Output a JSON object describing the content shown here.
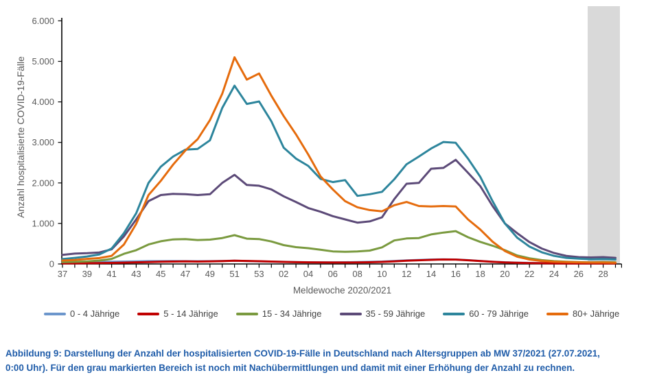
{
  "figure": {
    "caption_line1": "Abbildung 9: Darstellung der Anzahl der hospitalisierten COVID-19-Fälle in Deutschland nach Altersgruppen ab MW 37/2021 (27.07.2021,",
    "caption_line2": "0:00 Uhr). Für den grau markierten Bereich ist noch mit Nachübermittlungen und damit mit einer Erhöhung der Anzahl zu rechnen."
  },
  "chart_data": {
    "type": "line",
    "xlabel": "Meldewoche 2020/2021",
    "ylabel": "Anzahl hospitalisierte COVID-19-Fälle",
    "ylim": [
      0,
      6000
    ],
    "grid": false,
    "legend_position": "bottom",
    "y_ticks": [
      {
        "value": 0,
        "label": "0"
      },
      {
        "value": 1000,
        "label": "1.000"
      },
      {
        "value": 2000,
        "label": "2.000"
      },
      {
        "value": 3000,
        "label": "3.000"
      },
      {
        "value": 4000,
        "label": "4.000"
      },
      {
        "value": 5000,
        "label": "5.000"
      },
      {
        "value": 6000,
        "label": "6.000"
      }
    ],
    "x_label_every": 2,
    "categories": [
      "37",
      "38",
      "39",
      "40",
      "41",
      "42",
      "43",
      "44",
      "45",
      "46",
      "47",
      "48",
      "49",
      "50",
      "51",
      "52",
      "53",
      "01",
      "02",
      "03",
      "04",
      "05",
      "06",
      "07",
      "08",
      "09",
      "10",
      "11",
      "12",
      "13",
      "14",
      "15",
      "16",
      "17",
      "18",
      "19",
      "20",
      "21",
      "22",
      "23",
      "24",
      "25",
      "26",
      "27",
      "28",
      "29"
    ],
    "highlight_band": {
      "description": "grau markierter Bereich: Nachübermittlungen erwartet",
      "from_week": "27",
      "to_week": "29",
      "color": "#d9d9d9"
    },
    "series": [
      {
        "name": "0 - 4 Jährige",
        "color": "#6c96cc",
        "values": [
          40,
          42,
          45,
          50,
          55,
          60,
          65,
          70,
          70,
          72,
          70,
          68,
          70,
          75,
          80,
          72,
          65,
          58,
          52,
          46,
          42,
          40,
          40,
          42,
          46,
          52,
          60,
          75,
          90,
          100,
          110,
          115,
          110,
          95,
          75,
          55,
          42,
          32,
          26,
          22,
          20,
          18,
          18,
          20,
          24,
          22
        ]
      },
      {
        "name": "5 - 14 Jährige",
        "color": "#c00000",
        "values": [
          15,
          16,
          18,
          20,
          25,
          32,
          40,
          46,
          55,
          60,
          62,
          60,
          65,
          70,
          80,
          74,
          68,
          60,
          50,
          44,
          40,
          38,
          35,
          35,
          38,
          42,
          50,
          65,
          80,
          92,
          102,
          110,
          108,
          92,
          72,
          52,
          38,
          28,
          22,
          18,
          15,
          13,
          12,
          12,
          14,
          12
        ]
      },
      {
        "name": "15 - 34 Jährige",
        "color": "#7a9a3f",
        "values": [
          45,
          52,
          62,
          85,
          125,
          250,
          340,
          480,
          560,
          605,
          615,
          590,
          600,
          640,
          710,
          625,
          615,
          555,
          465,
          415,
          390,
          350,
          310,
          300,
          310,
          330,
          410,
          580,
          630,
          640,
          730,
          775,
          810,
          660,
          545,
          450,
          340,
          210,
          140,
          95,
          70,
          55,
          45,
          40,
          45,
          40
        ]
      },
      {
        "name": "35 - 59 Jährige",
        "color": "#5c4a78",
        "values": [
          225,
          255,
          265,
          285,
          360,
          680,
          1100,
          1550,
          1700,
          1730,
          1720,
          1700,
          1720,
          2000,
          2200,
          1950,
          1930,
          1840,
          1670,
          1530,
          1380,
          1290,
          1180,
          1100,
          1020,
          1050,
          1150,
          1600,
          1980,
          2000,
          2350,
          2370,
          2570,
          2250,
          1920,
          1430,
          1000,
          760,
          540,
          380,
          270,
          200,
          170,
          160,
          170,
          150
        ]
      },
      {
        "name": "60 - 79 Jährige",
        "color": "#2d859c",
        "values": [
          120,
          150,
          185,
          235,
          380,
          760,
          1250,
          2000,
          2400,
          2650,
          2820,
          2840,
          3050,
          3850,
          4400,
          3950,
          4010,
          3520,
          2870,
          2600,
          2420,
          2100,
          2020,
          2070,
          1680,
          1720,
          1780,
          2090,
          2460,
          2650,
          2850,
          3010,
          2990,
          2600,
          2150,
          1550,
          1000,
          650,
          430,
          290,
          200,
          150,
          130,
          115,
          120,
          110
        ]
      },
      {
        "name": "80+ Jährige",
        "color": "#e56b0c",
        "values": [
          85,
          100,
          125,
          145,
          200,
          480,
          990,
          1700,
          2050,
          2450,
          2800,
          3080,
          3550,
          4200,
          5100,
          4550,
          4700,
          4150,
          3650,
          3200,
          2700,
          2160,
          1840,
          1550,
          1400,
          1330,
          1300,
          1450,
          1530,
          1430,
          1420,
          1430,
          1420,
          1100,
          850,
          550,
          320,
          180,
          110,
          75,
          55,
          45,
          40,
          35,
          35,
          30
        ]
      }
    ]
  }
}
